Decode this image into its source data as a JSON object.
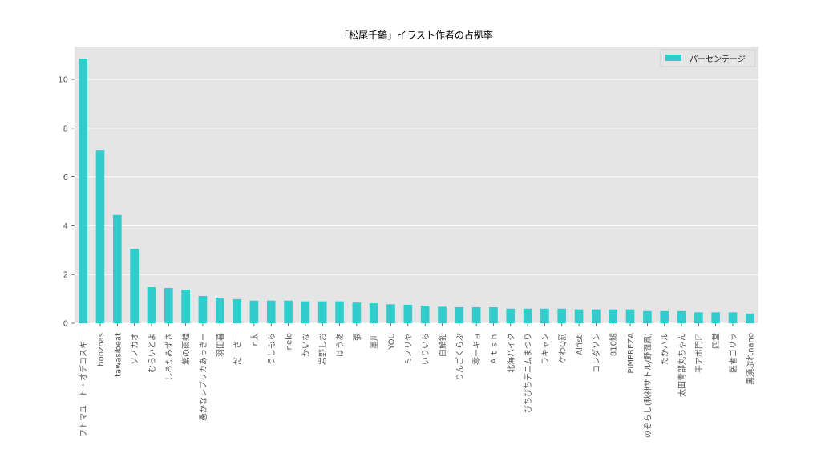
{
  "chart_data": {
    "type": "bar",
    "title": "「松尾千鶴」イラスト作者の占拠率",
    "xlabel": "",
    "ylabel": "",
    "ylim": [
      0,
      11.35
    ],
    "yticks": [
      0,
      2,
      4,
      6,
      8,
      10
    ],
    "grid": true,
    "legend_position": "top-right",
    "series": [
      {
        "name": "パーセンテージ",
        "color": "#33CCCC",
        "values": [
          10.85,
          7.1,
          4.45,
          3.05,
          1.48,
          1.45,
          1.38,
          1.12,
          1.05,
          0.99,
          0.93,
          0.93,
          0.93,
          0.9,
          0.9,
          0.9,
          0.85,
          0.82,
          0.78,
          0.76,
          0.72,
          0.68,
          0.66,
          0.66,
          0.66,
          0.6,
          0.6,
          0.6,
          0.6,
          0.57,
          0.57,
          0.57,
          0.57,
          0.5,
          0.5,
          0.5,
          0.45,
          0.45,
          0.45,
          0.4
        ]
      }
    ],
    "categories": [
      "フトマユート・オデコスキー",
      "honznas",
      "tawasibeat",
      "ソノカオ",
      "むらいとよ",
      "しろたみずき",
      "紫の雨蛙",
      "愚かなレプリカあっきー",
      "羽田暮",
      "だーさー",
      "n太",
      "うしもち",
      "nelo",
      "かいな",
      "岩野しお",
      "はうあ",
      "張",
      "墨川",
      "YOU",
      "ミノリヤ",
      "いりいち",
      "白鯖鉛",
      "りんごくらぶ",
      "零ーキョ",
      "Ａｔｓｈ",
      "北海バイク",
      "ぴちぴちデニムまつり",
      "ラキャン",
      "ケわQ罰",
      "Alfisti",
      "コレダソン",
      "810鯨",
      "PIMPREZA",
      "のぞらし(秋神サトル/野間凧)",
      "たかハル",
      "太田青部丸ちゃん",
      "平アボ門〼",
      "四堂",
      "医者ゴリラ",
      "黒須ぷれnano"
    ]
  }
}
